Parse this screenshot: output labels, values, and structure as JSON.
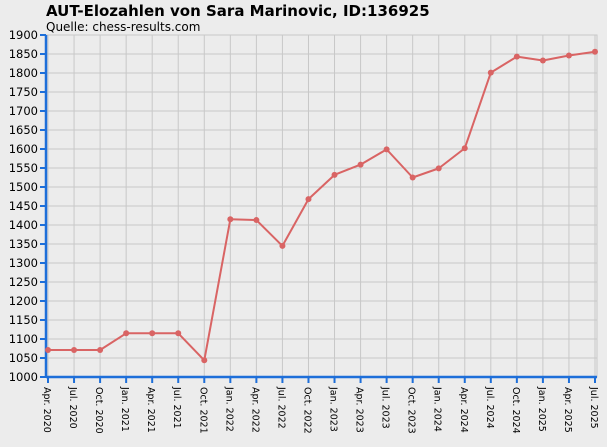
{
  "chart_data": {
    "type": "line",
    "title": "AUT-Elozahlen von Sara Marinovic, ID:136925",
    "subtitle": "Quelle: chess-results.com",
    "xlabel": "",
    "ylabel": "",
    "ylim": [
      1000,
      1900
    ],
    "yticks": [
      1000,
      1050,
      1100,
      1150,
      1200,
      1250,
      1300,
      1350,
      1400,
      1450,
      1500,
      1550,
      1600,
      1650,
      1700,
      1750,
      1800,
      1850,
      1900
    ],
    "grid": true,
    "categories": [
      "Apr. 2020",
      "Jul. 2020",
      "Oct. 2020",
      "Jan. 2021",
      "Apr. 2021",
      "Jul. 2021",
      "Oct. 2021",
      "Jan. 2022",
      "Apr. 2022",
      "Jul. 2022",
      "Oct. 2022",
      "Jan. 2023",
      "Apr. 2023",
      "Jul. 2023",
      "Oct. 2023",
      "Jan. 2024",
      "Apr. 2024",
      "Jul. 2024",
      "Oct. 2024",
      "Jan. 2025",
      "Apr. 2025",
      "Jul. 2025"
    ],
    "series": [
      {
        "values": [
          1071,
          1071,
          1071,
          1115,
          1115,
          1115,
          1044,
          1415,
          1413,
          1345,
          1468,
          1532,
          1559,
          1599,
          1525,
          1549,
          1602,
          1801,
          1843,
          1833,
          1846,
          1856
        ],
        "color": "#d96464"
      }
    ],
    "colors": {
      "axis": "#1e6fd9",
      "grid": "#c8c8c8",
      "background": "#ececec"
    }
  }
}
